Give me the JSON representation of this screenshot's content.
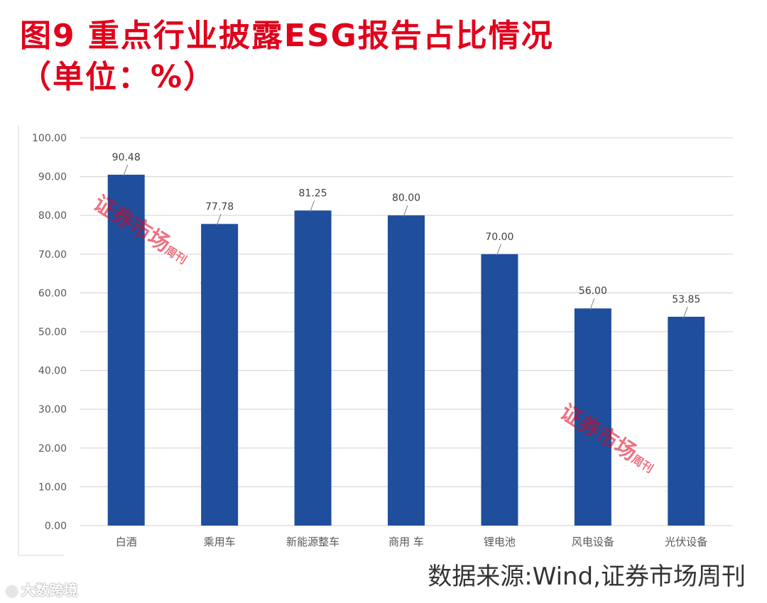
{
  "title": {
    "line1": "图9 重点行业披露ESG报告占比情况",
    "line2": "（单位：%）"
  },
  "source": "数据来源:Wind,证券市场周刊",
  "watermark": {
    "main": "证券市场",
    "small": "周刊"
  },
  "logo": {
    "text": "大数跨境",
    "icon": "logo-icon"
  },
  "colors": {
    "title": "#e0001b",
    "bar": "#1f4e9c",
    "grid": "#d9d9d9",
    "axis_text": "#595959"
  },
  "chart_data": {
    "type": "bar",
    "title": "",
    "xlabel": "",
    "ylabel": "",
    "ylim": [
      0,
      100
    ],
    "yticks": [
      "0.00",
      "10.00",
      "20.00",
      "30.00",
      "40.00",
      "50.00",
      "60.00",
      "70.00",
      "80.00",
      "90.00",
      "100.00"
    ],
    "categories": [
      "白酒",
      "乘用车",
      "新能源整车",
      "商用 车",
      "锂电池",
      "风电设备",
      "光伏设备"
    ],
    "values": [
      90.48,
      77.78,
      81.25,
      80.0,
      70.0,
      56.0,
      53.85
    ],
    "labels": [
      "90.48",
      "77.78",
      "81.25",
      "80.00",
      "70.00",
      "56.00",
      "53.85"
    ],
    "grid": true,
    "legend": "none"
  }
}
